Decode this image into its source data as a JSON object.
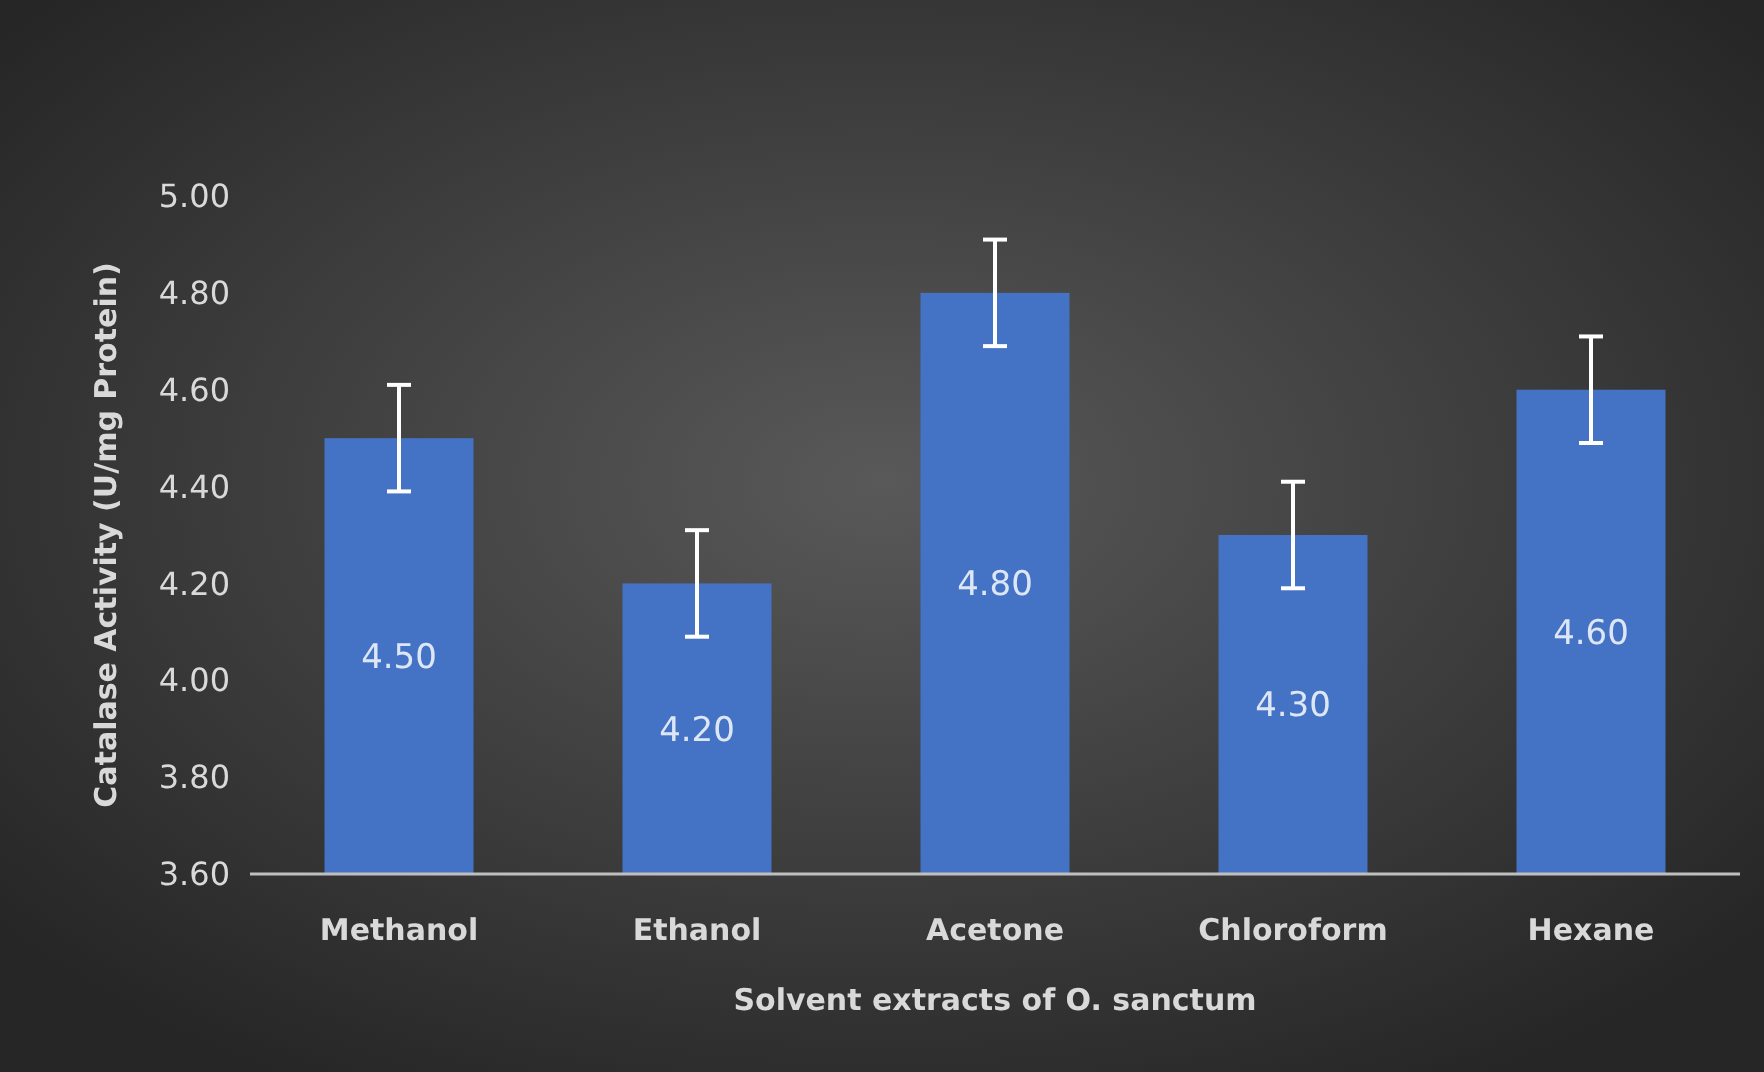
{
  "chart_data": {
    "type": "bar",
    "xlabel": "Solvent extracts of O. sanctum",
    "ylabel": "Catalase Activity (U/mg Protein)",
    "categories": [
      "Methanol",
      "Ethanol",
      "Acetone",
      "Chloroform",
      "Hexane"
    ],
    "values": [
      4.5,
      4.2,
      4.8,
      4.3,
      4.6
    ],
    "value_labels": [
      "4.50",
      "4.20",
      "4.80",
      "4.30",
      "4.60"
    ],
    "errors": [
      0.11,
      0.11,
      0.11,
      0.11,
      0.11
    ],
    "color": "#4472c4",
    "ylim": [
      3.6,
      5.0
    ],
    "yticks": [
      {
        "value": 3.6,
        "label": "3.60"
      },
      {
        "value": 3.8,
        "label": "3.80"
      },
      {
        "value": 4.0,
        "label": "4.00"
      },
      {
        "value": 4.2,
        "label": "4.20"
      },
      {
        "value": 4.4,
        "label": "4.40"
      },
      {
        "value": 4.6,
        "label": "4.60"
      },
      {
        "value": 4.8,
        "label": "4.80"
      },
      {
        "value": 5.0,
        "label": "5.00"
      }
    ],
    "grid": false
  }
}
